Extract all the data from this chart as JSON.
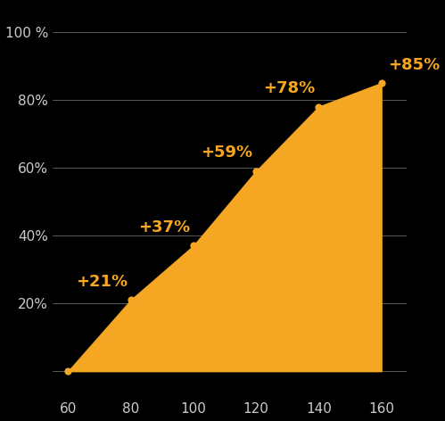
{
  "x": [
    60,
    80,
    100,
    120,
    140,
    160
  ],
  "y": [
    0,
    21,
    37,
    59,
    78,
    85
  ],
  "labels": [
    "",
    "+21%",
    "+37%",
    "+59%",
    "+78%",
    "+85%"
  ],
  "label_ha": [
    "right",
    "right",
    "right",
    "right",
    "right",
    "left"
  ],
  "label_va": [
    "bottom",
    "bottom",
    "bottom",
    "bottom",
    "bottom",
    "bottom"
  ],
  "label_dx": [
    0,
    -1,
    -1,
    -1,
    -1,
    2
  ],
  "label_dy": [
    2,
    3,
    3,
    3,
    3,
    3
  ],
  "fill_color": "#F5A623",
  "marker_color": "#F5A623",
  "label_color": "#F5A623",
  "background_color": "#000000",
  "grid_color": "#666666",
  "tick_color": "#cccccc",
  "xlim": [
    55,
    168
  ],
  "ylim": [
    -8,
    108
  ],
  "xticks": [
    60,
    80,
    100,
    120,
    140,
    160
  ],
  "yticks": [
    20,
    40,
    60,
    80,
    100
  ],
  "ytick_labels": [
    "20%",
    "40%",
    "60%",
    "80%",
    "100 %"
  ],
  "label_fontsize": 13,
  "tick_fontsize": 11
}
